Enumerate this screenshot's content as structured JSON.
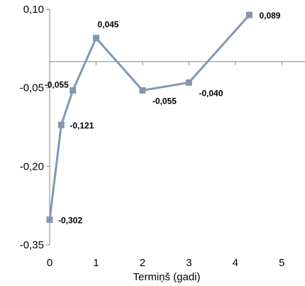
{
  "chart_data": {
    "type": "line",
    "title": "",
    "xlabel": "Termiņš (gadi)",
    "ylabel": "",
    "xlim": [
      0,
      5.5
    ],
    "ylim": [
      -0.35,
      0.1
    ],
    "xticks": [
      "0",
      "1",
      "2",
      "3",
      "4",
      "5"
    ],
    "yticks": [
      "0,10",
      "-0,05",
      "-0,20",
      "-0,35"
    ],
    "grid": false,
    "legend": "none",
    "series": [
      {
        "color": "#8497b0",
        "x": [
          0,
          0.25,
          0.5,
          1,
          2,
          3,
          4.3
        ],
        "y": [
          -0.302,
          -0.121,
          -0.055,
          0.045,
          -0.055,
          -0.04,
          0.089
        ],
        "labels": [
          "-0,302",
          "-0,121",
          "-0,055",
          "0,045",
          "-0,055",
          "-0,040",
          "0,089"
        ]
      }
    ]
  }
}
